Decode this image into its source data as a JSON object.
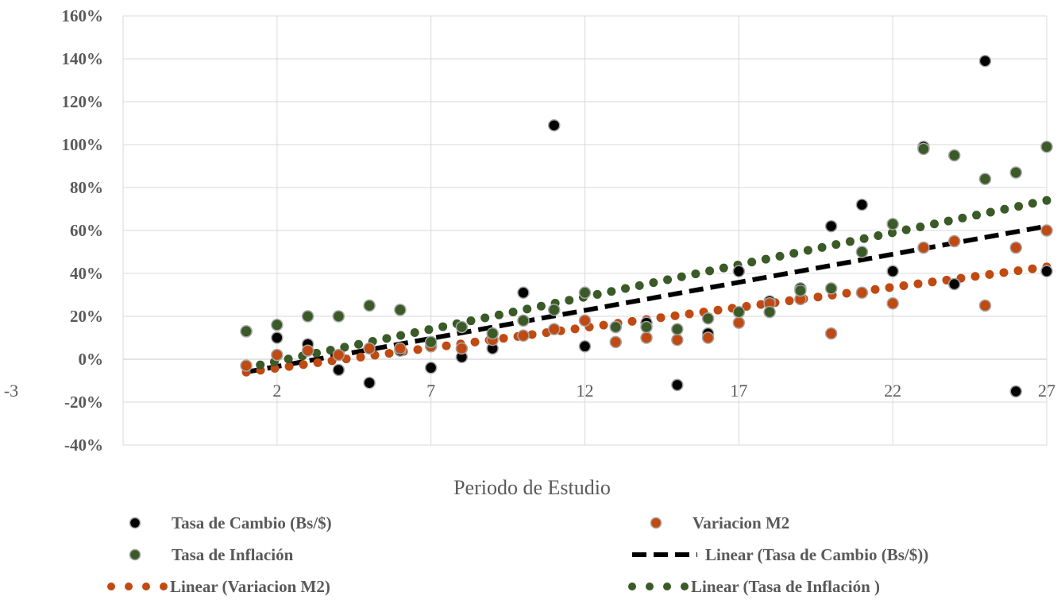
{
  "chart_data": {
    "type": "scatter",
    "xlabel": "Periodo de Estudio",
    "ylabel": "",
    "xlim": [
      -3,
      27
    ],
    "ylim": [
      -0.4,
      1.6
    ],
    "x_ticks": [
      -3,
      2,
      7,
      12,
      17,
      22,
      27
    ],
    "x_tick_labels": [
      "-3",
      "2",
      "7",
      "12",
      "17",
      "22",
      "27"
    ],
    "y_ticks": [
      -0.4,
      -0.2,
      0,
      0.2,
      0.4,
      0.6,
      0.8,
      1.0,
      1.2,
      1.4,
      1.6
    ],
    "y_tick_labels": [
      "-40%",
      "-20%",
      "0%",
      "20%",
      "40%",
      "60%",
      "80%",
      "100%",
      "120%",
      "140%",
      "160%"
    ],
    "grid": true,
    "legend_position": "bottom",
    "series": [
      {
        "name": "Tasa de Cambio (Bs/$)",
        "color": "#000000",
        "x": [
          1,
          2,
          3,
          4,
          5,
          6,
          7,
          8,
          9,
          10,
          11,
          12,
          13,
          14,
          15,
          16,
          17,
          18,
          19,
          20,
          21,
          22,
          23,
          24,
          25,
          26,
          27
        ],
        "y": [
          0.13,
          0.1,
          0.07,
          -0.05,
          -0.11,
          0.04,
          -0.04,
          0.01,
          0.05,
          0.31,
          1.09,
          0.06,
          0.15,
          0.17,
          -0.12,
          0.12,
          0.41,
          0.27,
          0.33,
          0.62,
          0.72,
          0.41,
          0.99,
          0.35,
          1.39,
          -0.15,
          0.41
        ]
      },
      {
        "name": "Variacion M2",
        "color": "#c04a12",
        "x": [
          1,
          2,
          3,
          4,
          5,
          6,
          7,
          8,
          9,
          10,
          11,
          12,
          13,
          14,
          15,
          16,
          17,
          18,
          19,
          20,
          21,
          22,
          23,
          24,
          25,
          26,
          27
        ],
        "y": [
          -0.03,
          0.02,
          0.04,
          0.02,
          0.05,
          0.05,
          0.06,
          0.05,
          0.09,
          0.11,
          0.14,
          0.18,
          0.08,
          0.1,
          0.09,
          0.1,
          0.17,
          0.26,
          0.28,
          0.12,
          0.31,
          0.26,
          0.52,
          0.55,
          0.25,
          0.52,
          0.6
        ]
      },
      {
        "name": "Tasa de Inflación",
        "color": "#3a5a27",
        "x": [
          1,
          2,
          3,
          4,
          5,
          6,
          7,
          8,
          9,
          10,
          11,
          12,
          13,
          14,
          15,
          16,
          17,
          18,
          19,
          20,
          21,
          22,
          23,
          24,
          25,
          26,
          27
        ],
        "y": [
          0.13,
          0.16,
          0.2,
          0.2,
          0.25,
          0.23,
          0.08,
          0.15,
          0.12,
          0.18,
          0.23,
          0.31,
          0.15,
          0.15,
          0.14,
          0.19,
          0.22,
          0.22,
          0.32,
          0.33,
          0.5,
          0.63,
          0.98,
          0.95,
          0.84,
          0.87,
          0.99
        ]
      }
    ],
    "trendlines": [
      {
        "name": "Linear (Tasa de Cambio (Bs/$))",
        "color": "#000000",
        "style": "dashed",
        "x": [
          1,
          27
        ],
        "y": [
          -0.06,
          0.62
        ]
      },
      {
        "name": "Linear (Variacion M2)",
        "color": "#c04a12",
        "style": "dotted",
        "x": [
          1,
          27
        ],
        "y": [
          -0.06,
          0.43
        ]
      },
      {
        "name": "Linear (Tasa de Inflación )",
        "color": "#3a5a27",
        "style": "dotted",
        "x": [
          1,
          27
        ],
        "y": [
          -0.04,
          0.74
        ]
      }
    ],
    "legend": [
      {
        "label": "Tasa de Cambio (Bs/$)",
        "kind": "marker",
        "color": "#000000"
      },
      {
        "label": "Variacion M2",
        "kind": "marker",
        "color": "#c04a12"
      },
      {
        "label": "Tasa de Inflación",
        "kind": "marker",
        "color": "#3a5a27"
      },
      {
        "label": "Linear (Tasa de Cambio (Bs/$))",
        "kind": "dashed",
        "color": "#000000"
      },
      {
        "label": "Linear (Variacion M2)",
        "kind": "dotted",
        "color": "#c04a12"
      },
      {
        "label": "Linear (Tasa de Inflación )",
        "kind": "dotted",
        "color": "#3a5a27"
      }
    ]
  }
}
